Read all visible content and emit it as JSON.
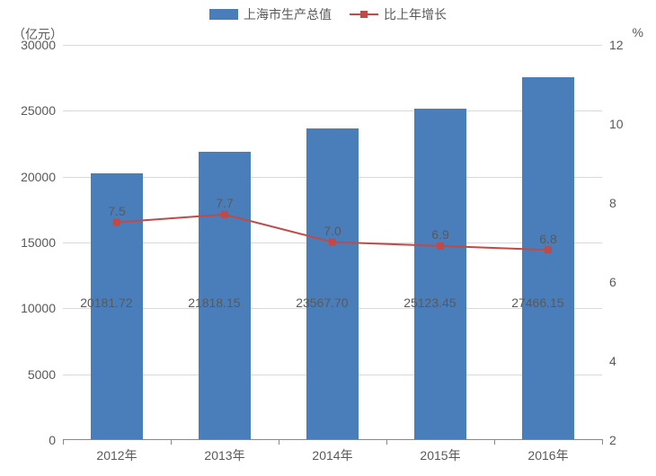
{
  "legend": {
    "bar_label": "上海市生产总值",
    "line_label": "比上年增长"
  },
  "axes": {
    "left_title": "（亿元）",
    "right_title": "%"
  },
  "chart": {
    "type": "bar+line",
    "categories": [
      "2012年",
      "2013年",
      "2014年",
      "2015年",
      "2016年"
    ],
    "bar_values": [
      20181.72,
      21818.15,
      23567.7,
      25123.45,
      27466.15
    ],
    "bar_value_labels": [
      "20181.72",
      "21818.15",
      "23567.70",
      "25123.45",
      "27466.15"
    ],
    "line_values": [
      7.5,
      7.7,
      7.0,
      6.9,
      6.8
    ],
    "line_value_labels": [
      "7.5",
      "7.7",
      "7.0",
      "6.9",
      "6.8"
    ],
    "bar_color": "#4a7ebb",
    "line_color": "#be4b48",
    "background_color": "#ffffff",
    "grid_color": "#d9d9d9",
    "text_color": "#595959",
    "left_y": {
      "min": 0,
      "max": 30000,
      "step": 5000,
      "ticks": [
        0,
        5000,
        10000,
        15000,
        20000,
        25000,
        30000
      ]
    },
    "right_y": {
      "min": 2,
      "max": 12,
      "step": 2,
      "ticks": [
        2,
        4,
        6,
        8,
        10,
        12
      ]
    },
    "bar_width_ratio": 0.48,
    "marker_size": 8,
    "line_width": 2,
    "label_fontsize": 14
  }
}
